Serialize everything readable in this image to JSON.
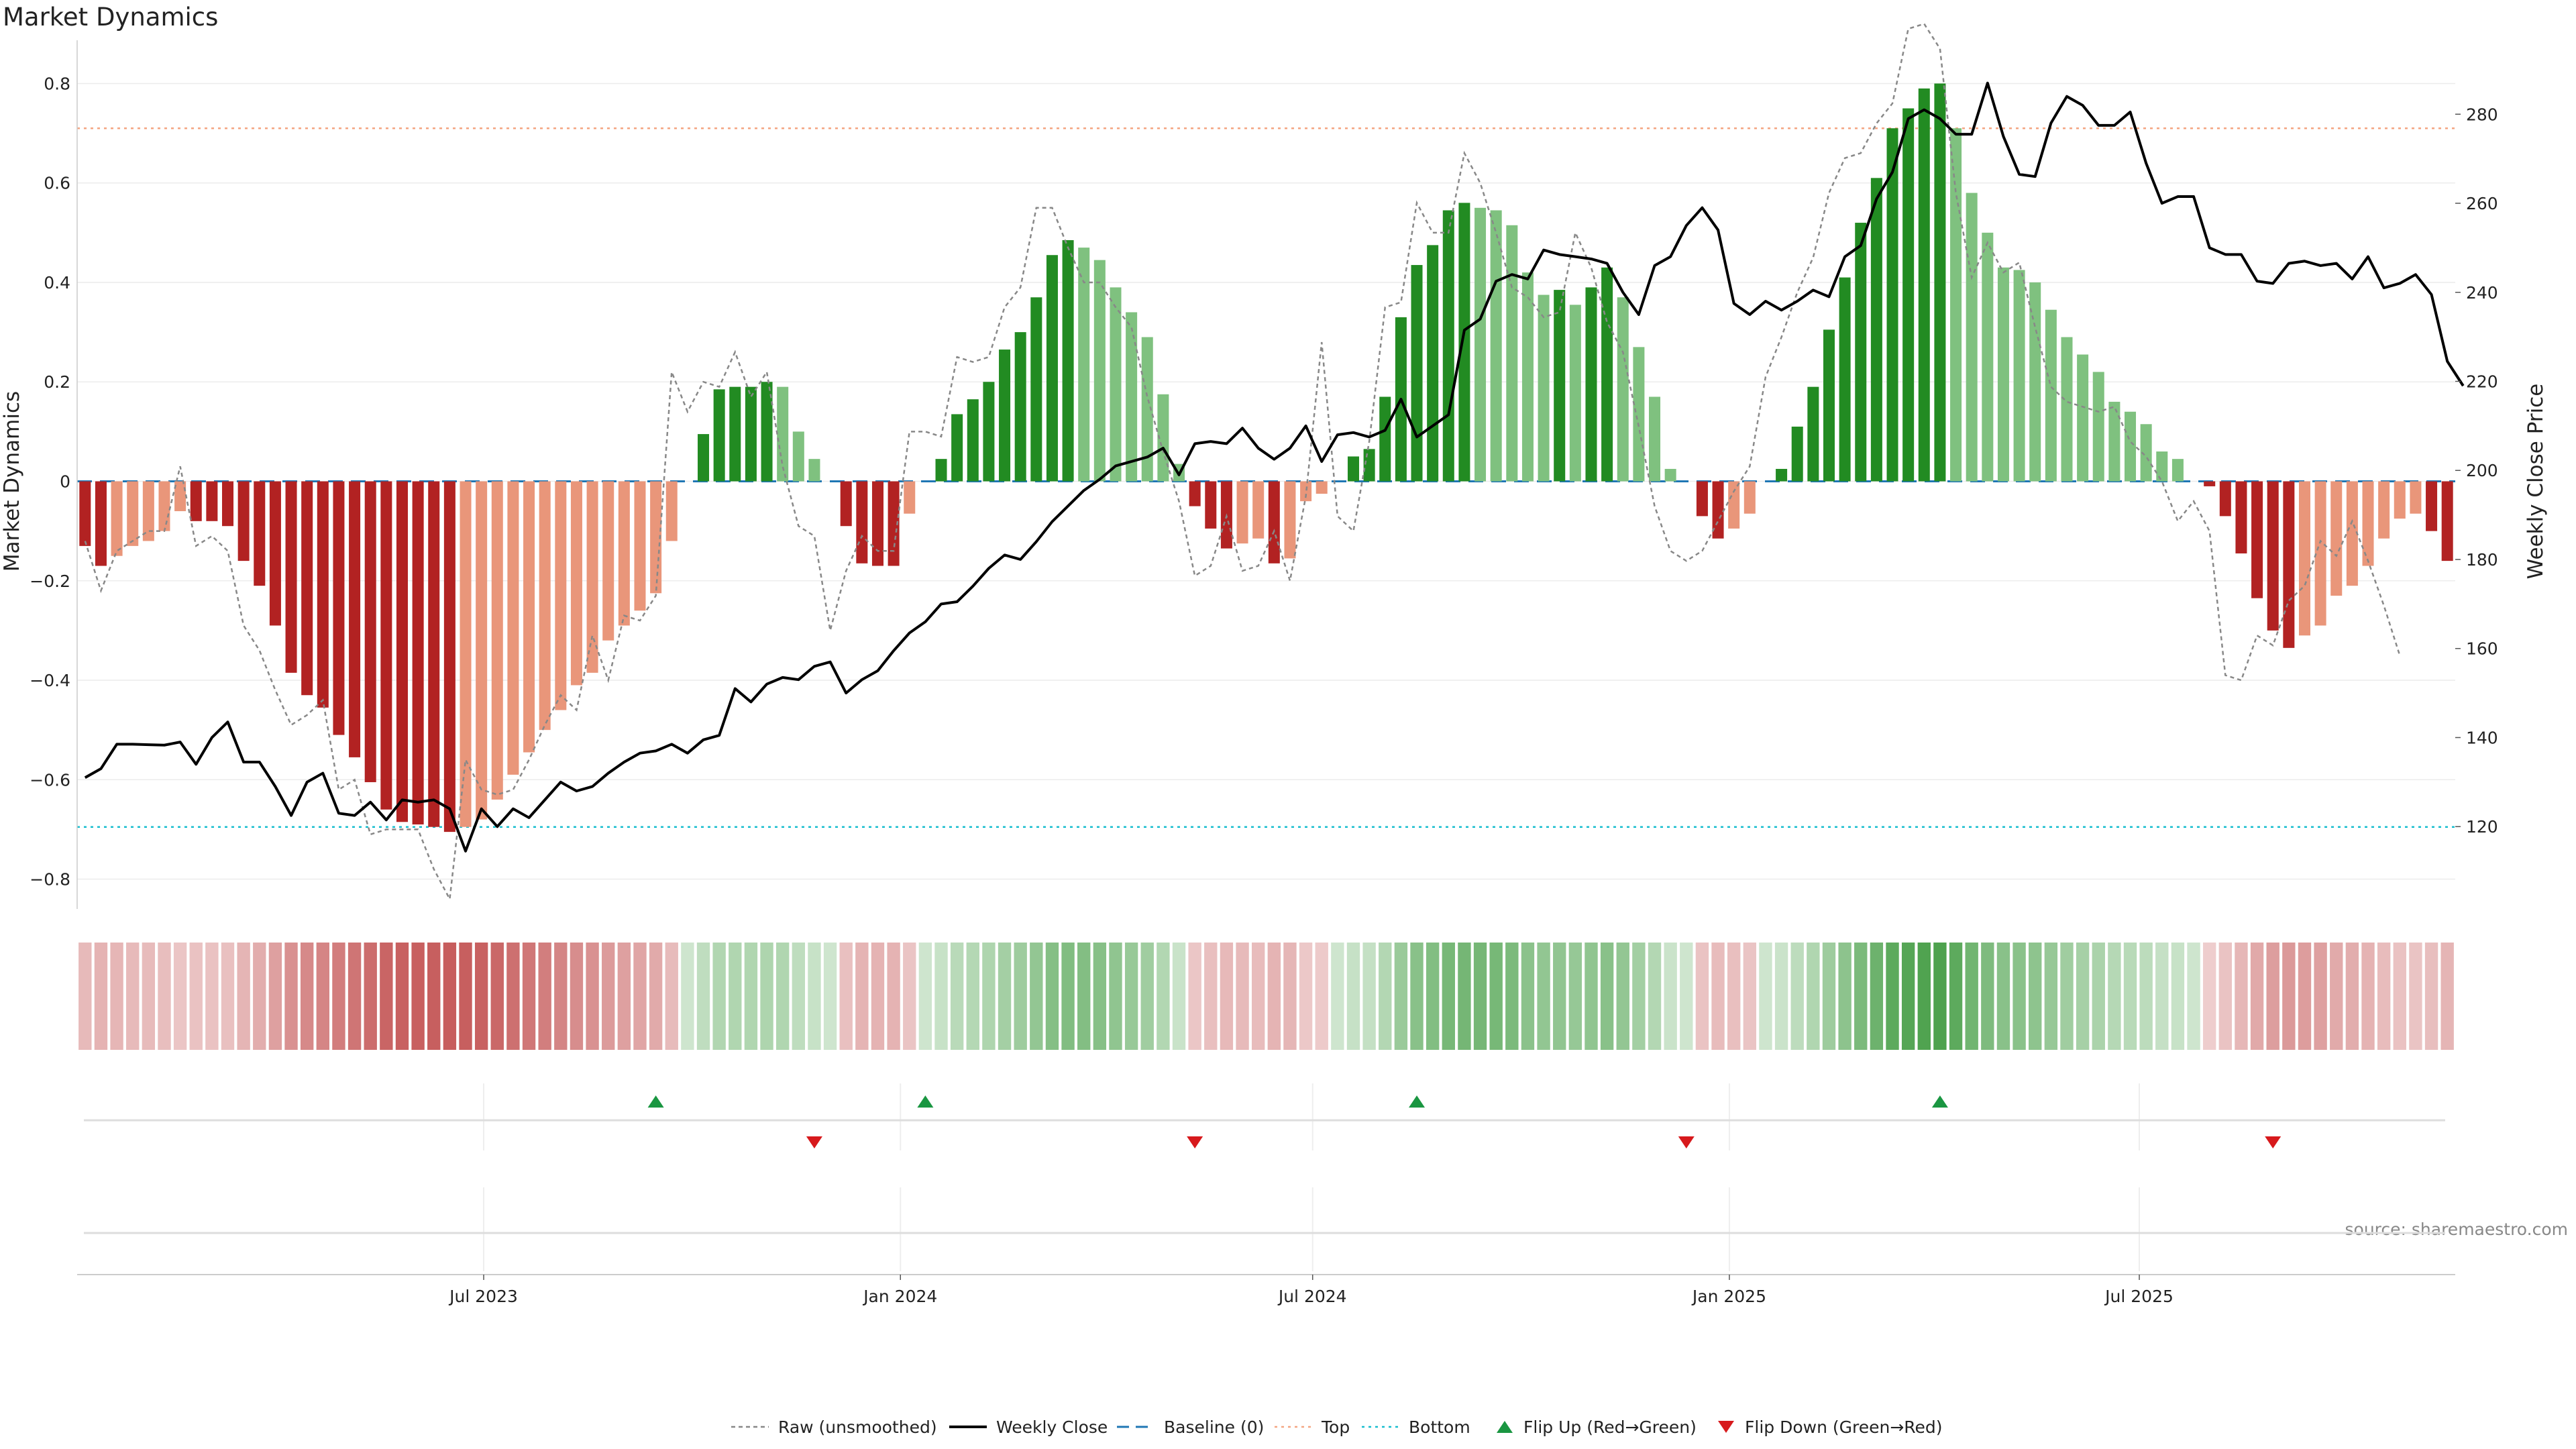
{
  "title": "Market Dynamics",
  "source": "source: sharemaestro.com",
  "chart_data": {
    "type": "bar+line",
    "title": "Market Dynamics",
    "ylabel": "Market Dynamics",
    "y2label": "Weekly Close Price",
    "ylim": [
      -0.86,
      0.86
    ],
    "y2lim": [
      101.5,
      293.6
    ],
    "yticks": [
      -0.8,
      -0.6,
      -0.4,
      -0.2,
      0,
      0.2,
      0.4,
      0.6,
      0.8
    ],
    "ytick_labels": [
      "−0.8",
      "−0.6",
      "−0.4",
      "−0.2",
      "0",
      "0.2",
      "0.4",
      "0.6",
      "0.8"
    ],
    "y2ticks": [
      120,
      140,
      160,
      180,
      200,
      220,
      240,
      260,
      280
    ],
    "x_start": "2023-01-06",
    "x_step_days": 7,
    "xticks": [
      "2023-07-01",
      "2024-01-01",
      "2024-07-01",
      "2025-01-01",
      "2025-07-01"
    ],
    "xtick_labels": [
      "Jul 2023",
      "Jan 2024",
      "Jul 2024",
      "Jan 2025",
      "Jul 2025"
    ],
    "top_level": 0.71,
    "bottom_level": -0.695,
    "momentum": [
      -0.13,
      -0.17,
      -0.15,
      -0.13,
      -0.12,
      -0.1,
      -0.06,
      -0.08,
      -0.08,
      -0.09,
      -0.16,
      -0.21,
      -0.29,
      -0.385,
      -0.43,
      -0.455,
      -0.51,
      -0.555,
      -0.605,
      -0.66,
      -0.685,
      -0.69,
      -0.695,
      -0.705,
      -0.695,
      -0.68,
      -0.64,
      -0.59,
      -0.545,
      -0.5,
      -0.46,
      -0.41,
      -0.385,
      -0.32,
      -0.29,
      -0.26,
      -0.225,
      -0.12,
      0.0,
      0.095,
      0.185,
      0.19,
      0.19,
      0.2,
      0.19,
      0.1,
      0.045,
      0.0,
      -0.09,
      -0.165,
      -0.17,
      -0.17,
      -0.065,
      0.0,
      0.045,
      0.135,
      0.165,
      0.2,
      0.265,
      0.3,
      0.37,
      0.455,
      0.485,
      0.47,
      0.445,
      0.39,
      0.34,
      0.29,
      0.175,
      0.035,
      -0.05,
      -0.095,
      -0.135,
      -0.125,
      -0.115,
      -0.165,
      -0.155,
      -0.04,
      -0.025,
      0.0,
      0.05,
      0.065,
      0.17,
      0.33,
      0.435,
      0.475,
      0.545,
      0.56,
      0.55,
      0.545,
      0.515,
      0.42,
      0.375,
      0.385,
      0.355,
      0.39,
      0.43,
      0.37,
      0.27,
      0.17,
      0.025,
      0.0,
      -0.07,
      -0.115,
      -0.095,
      -0.065,
      0.0,
      0.025,
      0.11,
      0.19,
      0.305,
      0.41,
      0.52,
      0.61,
      0.71,
      0.75,
      0.79,
      0.8,
      0.71,
      0.58,
      0.5,
      0.43,
      0.425,
      0.4,
      0.345,
      0.29,
      0.255,
      0.22,
      0.16,
      0.14,
      0.115,
      0.06,
      0.045,
      0.0,
      -0.01,
      -0.07,
      -0.145,
      -0.235,
      -0.3,
      -0.335,
      -0.31,
      -0.29,
      -0.23,
      -0.21,
      -0.17,
      -0.115,
      -0.075,
      -0.065,
      -0.1,
      -0.16
    ],
    "raw": [
      -0.12,
      -0.22,
      -0.14,
      -0.12,
      -0.1,
      -0.1,
      0.03,
      -0.13,
      -0.11,
      -0.14,
      -0.29,
      -0.34,
      -0.42,
      -0.49,
      -0.47,
      -0.44,
      -0.62,
      -0.6,
      -0.71,
      -0.7,
      -0.7,
      -0.7,
      -0.78,
      -0.84,
      -0.56,
      -0.62,
      -0.63,
      -0.62,
      -0.56,
      -0.49,
      -0.43,
      -0.46,
      -0.31,
      -0.4,
      -0.27,
      -0.28,
      -0.23,
      0.22,
      0.14,
      0.2,
      0.19,
      0.26,
      0.17,
      0.22,
      0.03,
      -0.09,
      -0.11,
      -0.3,
      -0.18,
      -0.11,
      -0.14,
      -0.14,
      0.1,
      0.1,
      0.09,
      0.25,
      0.24,
      0.25,
      0.35,
      0.39,
      0.55,
      0.55,
      0.47,
      0.4,
      0.4,
      0.35,
      0.31,
      0.17,
      0.06,
      -0.04,
      -0.19,
      -0.17,
      -0.07,
      -0.18,
      -0.17,
      -0.1,
      -0.2,
      -0.03,
      0.28,
      -0.07,
      -0.1,
      0.08,
      0.35,
      0.36,
      0.56,
      0.5,
      0.5,
      0.66,
      0.6,
      0.5,
      0.39,
      0.37,
      0.33,
      0.34,
      0.5,
      0.43,
      0.32,
      0.26,
      0.11,
      -0.05,
      -0.14,
      -0.16,
      -0.14,
      -0.08,
      -0.02,
      0.03,
      0.21,
      0.29,
      0.38,
      0.45,
      0.58,
      0.65,
      0.66,
      0.72,
      0.76,
      0.91,
      0.92,
      0.87,
      0.58,
      0.41,
      0.48,
      0.42,
      0.44,
      0.31,
      0.19,
      0.16,
      0.15,
      0.14,
      0.15,
      0.08,
      0.05,
      0.0,
      -0.08,
      -0.04,
      -0.1,
      -0.39,
      -0.4,
      -0.31,
      -0.33,
      -0.24,
      -0.21,
      -0.12,
      -0.15,
      -0.08,
      -0.16,
      -0.25,
      -0.35
    ],
    "price": [
      131,
      133,
      138.5,
      138.5,
      138.4,
      138.3,
      139,
      134,
      140,
      143.5,
      134.5,
      134.5,
      129,
      122.5,
      130,
      132,
      123,
      122.5,
      125.5,
      121.5,
      126,
      125.5,
      126,
      124,
      114.5,
      124,
      120,
      124,
      122,
      126,
      130,
      128,
      129,
      132,
      134.5,
      136.5,
      137,
      138.5,
      136.5,
      139.5,
      140.5,
      151,
      148,
      152,
      153.5,
      153,
      156,
      157,
      150,
      153,
      155,
      159.5,
      163.5,
      166,
      170,
      170.5,
      174,
      178,
      181,
      180,
      184,
      188.5,
      192,
      195.5,
      198,
      201,
      202,
      203,
      205,
      199,
      206,
      206.5,
      206,
      209.5,
      205,
      202.5,
      205,
      210,
      202,
      208,
      208.5,
      207.5,
      209,
      216,
      207.5,
      210,
      212.5,
      231.5,
      234,
      242.5,
      244,
      243,
      249.5,
      248.5,
      248,
      247.5,
      246.5,
      240,
      235,
      246,
      248,
      255,
      259,
      254,
      237.5,
      235,
      238,
      236,
      238,
      240.5,
      239,
      248,
      250.5,
      261,
      267,
      279,
      281,
      279,
      275.5,
      275.5,
      287,
      275,
      266.5,
      266,
      278,
      284,
      282,
      277.5,
      277.5,
      280.5,
      269,
      260,
      261.5,
      261.5,
      250,
      248.5,
      248.5,
      242.5,
      242,
      246.5,
      247,
      246,
      246.5,
      243,
      248,
      241,
      242,
      244,
      239.5,
      224.5,
      219
    ],
    "flip_up_index": [
      36,
      53,
      84,
      117
    ],
    "flip_down_index": [
      46,
      70,
      101,
      138
    ],
    "legend": [
      "Raw (unsmoothed)",
      "Weekly Close",
      "Baseline (0)",
      "Top",
      "Bottom",
      "Flip Up (Red→Green)",
      "Flip Down (Green→Red)"
    ]
  },
  "colors": {
    "strong_negative": "#b22222",
    "weak_negative": "#e9967a",
    "strong_positive": "#228b22",
    "weak_positive": "#7fc17f",
    "price_line": "#000000",
    "raw_line": "#888888",
    "baseline": "#1f77b4",
    "top": "#f4a582",
    "bottom": "#17becf",
    "flip_up": "#1a9641",
    "flip_down": "#d7191c"
  }
}
